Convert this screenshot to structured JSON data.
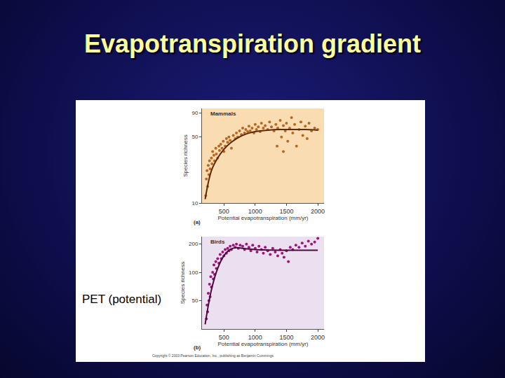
{
  "slide": {
    "title": "Evapotranspiration gradient",
    "note": "PET (potential)",
    "copyright": "Copyright © 2003 Pearson Education, Inc., publishing as Benjamin Cummings"
  },
  "chart_data": [
    {
      "type": "scatter",
      "title": "Mammals",
      "annotations": [
        "(a)"
      ],
      "x_label": "Potential evapotranspiration (mm/yr)",
      "y_label": "Species richness",
      "xlim": [
        150,
        2100
      ],
      "xticks": [
        500,
        1000,
        1500,
        2000
      ],
      "ylim": [
        10,
        100
      ],
      "yticks": [
        10,
        50,
        90
      ],
      "log": "y",
      "series": [
        {
          "type": "scatter",
          "marker": "circle",
          "color": "#b8681f",
          "x": [
            210,
            220,
            230,
            240,
            250,
            260,
            270,
            280,
            300,
            310,
            320,
            340,
            350,
            370,
            380,
            400,
            420,
            430,
            450,
            470,
            490,
            500,
            520,
            540,
            560,
            580,
            600,
            620,
            650,
            680,
            700,
            720,
            750,
            780,
            800,
            830,
            850,
            880,
            900,
            920,
            950,
            980,
            1000,
            1020,
            1050,
            1080,
            1100,
            1130,
            1160,
            1200,
            1230,
            1260,
            1300,
            1330,
            1350,
            1360,
            1400,
            1420,
            1450,
            1450,
            1480,
            1500,
            1520,
            1550,
            1580,
            1600,
            1630,
            1660,
            1700,
            1730,
            1760,
            1800,
            1830,
            1860,
            1900,
            1950,
            2000
          ],
          "values": [
            12,
            18,
            22,
            15,
            25,
            20,
            28,
            23,
            30,
            26,
            35,
            32,
            28,
            38,
            33,
            30,
            40,
            36,
            42,
            38,
            45,
            35,
            40,
            48,
            44,
            50,
            46,
            38,
            52,
            48,
            55,
            50,
            58,
            53,
            62,
            55,
            60,
            57,
            65,
            58,
            62,
            55,
            68,
            60,
            64,
            57,
            70,
            62,
            66,
            60,
            72,
            64,
            58,
            68,
            40,
            62,
            75,
            50,
            66,
            35,
            58,
            70,
            45,
            62,
            80,
            55,
            68,
            40,
            60,
            72,
            52,
            65,
            48,
            70,
            58,
            62,
            60
          ]
        },
        {
          "type": "line",
          "line_style": "solid",
          "color": "#5a2a0a",
          "x": [
            200,
            300,
            400,
            500,
            600,
            700,
            800,
            900,
            1000,
            1200,
            1400,
            1600,
            1800,
            2000
          ],
          "values": [
            11,
            22,
            30,
            37,
            43,
            48,
            52,
            55,
            57,
            59,
            60,
            60,
            60,
            59
          ]
        }
      ]
    },
    {
      "type": "scatter",
      "title": "Birds",
      "annotations": [
        "(b)"
      ],
      "x_label": "Potential evapotranspiration (mm/yr)",
      "y_label": "Species richness",
      "xlim": [
        150,
        2100
      ],
      "xticks": [
        500,
        1000,
        1500,
        2000
      ],
      "ylim": [
        25,
        240
      ],
      "yticks": [
        50,
        100,
        200
      ],
      "log": "y",
      "series": [
        {
          "type": "scatter",
          "marker": "circle",
          "color": "#a3127a",
          "x": [
            220,
            230,
            240,
            250,
            260,
            270,
            280,
            290,
            300,
            320,
            330,
            340,
            350,
            370,
            380,
            400,
            420,
            440,
            460,
            480,
            500,
            520,
            540,
            560,
            580,
            600,
            620,
            650,
            680,
            700,
            730,
            760,
            800,
            830,
            860,
            900,
            930,
            960,
            1000,
            1030,
            1060,
            1100,
            1130,
            1160,
            1200,
            1240,
            1280,
            1320,
            1360,
            1400,
            1430,
            1460,
            1500,
            1530,
            1560,
            1600,
            1650,
            1700,
            1750,
            1800,
            1850,
            1900,
            1950,
            2000
          ],
          "values": [
            32,
            45,
            38,
            60,
            50,
            75,
            55,
            90,
            70,
            100,
            85,
            120,
            95,
            130,
            110,
            140,
            125,
            155,
            140,
            165,
            150,
            175,
            160,
            180,
            170,
            190,
            175,
            195,
            185,
            200,
            180,
            195,
            190,
            175,
            200,
            185,
            170,
            195,
            180,
            165,
            190,
            175,
            160,
            185,
            170,
            155,
            180,
            165,
            150,
            175,
            160,
            145,
            170,
            130,
            185,
            175,
            195,
            185,
            205,
            190,
            215,
            200,
            210,
            230
          ]
        },
        {
          "type": "line",
          "line_style": "solid",
          "color": "#4a0a3a",
          "x": [
            200,
            300,
            400,
            500,
            600,
            700,
            800,
            1000,
            1500,
            2000
          ],
          "values": [
            28,
            65,
            110,
            150,
            175,
            183,
            180,
            175,
            172,
            172
          ]
        }
      ]
    }
  ]
}
